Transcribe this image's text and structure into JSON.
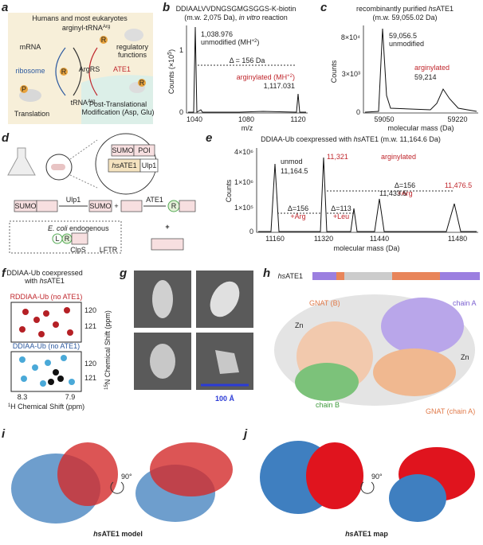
{
  "panels": {
    "a": {
      "letter": "a",
      "title": "Humans and most eukaryotes",
      "mrna": "mRNA",
      "ribosome": "ribosome",
      "translation": "Translation",
      "arg_trna": "arginyl-tRNA",
      "arg_sup": "Arg",
      "argrs": "ArgRS",
      "trna": "tRNA",
      "regulatory": "regulatory",
      "functions": "functions",
      "ate1": "ATE1",
      "ptm1": "Post-Translational",
      "ptm2": "Modification (Asp, Glu)",
      "r": "R",
      "p": "P"
    },
    "b": {
      "letter": "b",
      "title": "DDIAALVVDNGSGMGSGGS-K-biotin",
      "sub1": "(m.w. 2,075 Da), ",
      "sub2": "in vitro",
      "sub3": " reaction",
      "peak1": "1,038.976",
      "peak1_label": "unmodified (MH",
      "charge": "+2",
      "close": ")",
      "delta": "Δ = 156 Da",
      "peak2_label": "arginylated (MH",
      "peak2": "1,117.031",
      "ylabel": "Counts (×10",
      "ylabel_exp": "5",
      "yticks": [
        "1",
        "0"
      ],
      "xticks": [
        "1040",
        "1080",
        "1120"
      ],
      "xlabel": "m/z"
    },
    "c": {
      "letter": "c",
      "title1": "recombinantly purified ",
      "title_hs": "hs",
      "title2": "ATE1",
      "sub": "(m.w. 59,055.02 Da)",
      "peak1": "59,056.5",
      "peak1_label": "unmodified",
      "peak2_label": "arginylated",
      "peak2": "59,214",
      "yticks": [
        "8×10⁴",
        "3×10³",
        "0"
      ],
      "xticks": [
        "59050",
        "59220"
      ],
      "ylabel": "Counts",
      "xlabel": "molecular mass (Da)"
    },
    "d": {
      "letter": "d",
      "sumo": "SUMO",
      "poi": "POI",
      "hs": "hs",
      "ate1": "ATE1",
      "ulp1": "Ulp1",
      "plus": "+",
      "r": "R",
      "l": "L",
      "ecoli": "E. coli",
      "endogenous": " endogenous",
      "clps": "ClpS",
      "lftr": "LFTR"
    },
    "e": {
      "letter": "e",
      "title1": "DDIAA-Ub coexpressed with ",
      "title_hs": "hs",
      "title2": "ATE1",
      "title3": " (m.w. 11,164.6 Da)",
      "unmod": "unmod",
      "peak1": "11,164.5",
      "peak2": "11,321",
      "arginylated": "arginylated",
      "delta1": "Δ=156",
      "arg": "+Arg",
      "peak3": "11,476.5",
      "peak4": "11,433.5",
      "delta2": "Δ=156",
      "delta3": "Δ=113",
      "leu": "+Leu",
      "yticks": [
        "4×10⁶",
        "1×10⁶",
        "1×10⁵",
        "0"
      ],
      "xticks": [
        "11160",
        "11320",
        "11440",
        "11480"
      ],
      "ylabel": "Counts",
      "xlabel": "molecular mass (Da)"
    },
    "f": {
      "letter": "f",
      "title1": "DDIAA-Ub coexpressed",
      "title2": "with ",
      "title_hs": "hs",
      "title3": "ATE1",
      "top_label": "RDDIAA-Ub (no ATE1)",
      "bottom_label": "DDIAA-Ub (no ATE1)",
      "yticks": [
        "120",
        "121"
      ],
      "xticks": [
        "8.3",
        "7.9"
      ],
      "xlabel_sup": "1",
      "xlabel": "H Chemical Shift (ppm)",
      "ylabel_sup": "15",
      "ylabel": "N Chemical Shift (ppm)"
    },
    "g": {
      "letter": "g",
      "scale": "100 Å"
    },
    "h": {
      "letter": "h",
      "hs": "hs",
      "ate1": "ATE1",
      "gnat_b": "GNAT (B)",
      "chain_a": "chain A",
      "zn": "Zn",
      "chain_b": "chain B",
      "gnat_a": "GNAT (chain A)"
    },
    "i": {
      "letter": "i",
      "angle": "90°",
      "hs": "hs",
      "caption": "ATE1 model"
    },
    "j": {
      "letter": "j",
      "angle": "90°",
      "hs": "hs",
      "caption": "ATE1 map"
    }
  }
}
